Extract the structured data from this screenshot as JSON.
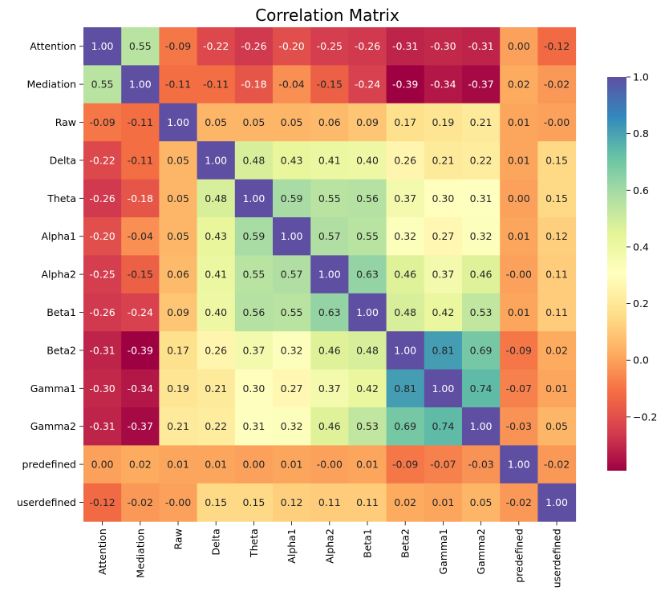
{
  "chart_data": {
    "type": "heatmap",
    "title": "Correlation Matrix",
    "labels": [
      "Attention",
      "Mediation",
      "Raw",
      "Delta",
      "Theta",
      "Alpha1",
      "Alpha2",
      "Beta1",
      "Beta2",
      "Gamma1",
      "Gamma2",
      "predefined",
      "userdefined"
    ],
    "values": [
      [
        1.0,
        0.55,
        -0.09,
        -0.22,
        -0.26,
        -0.2,
        -0.25,
        -0.26,
        -0.31,
        -0.3,
        -0.31,
        0.0,
        -0.12
      ],
      [
        0.55,
        1.0,
        -0.11,
        -0.11,
        -0.18,
        -0.04,
        -0.15,
        -0.24,
        -0.39,
        -0.34,
        -0.37,
        0.02,
        -0.02
      ],
      [
        -0.09,
        -0.11,
        1.0,
        0.05,
        0.05,
        0.05,
        0.06,
        0.09,
        0.17,
        0.19,
        0.21,
        0.01,
        -0.0
      ],
      [
        -0.22,
        -0.11,
        0.05,
        1.0,
        0.48,
        0.43,
        0.41,
        0.4,
        0.26,
        0.21,
        0.22,
        0.01,
        0.15
      ],
      [
        -0.26,
        -0.18,
        0.05,
        0.48,
        1.0,
        0.59,
        0.55,
        0.56,
        0.37,
        0.3,
        0.31,
        0.0,
        0.15
      ],
      [
        -0.2,
        -0.04,
        0.05,
        0.43,
        0.59,
        1.0,
        0.57,
        0.55,
        0.32,
        0.27,
        0.32,
        0.01,
        0.12
      ],
      [
        -0.25,
        -0.15,
        0.06,
        0.41,
        0.55,
        0.57,
        1.0,
        0.63,
        0.46,
        0.37,
        0.46,
        -0.0,
        0.11
      ],
      [
        -0.26,
        -0.24,
        0.09,
        0.4,
        0.56,
        0.55,
        0.63,
        1.0,
        0.48,
        0.42,
        0.53,
        0.01,
        0.11
      ],
      [
        -0.31,
        -0.39,
        0.17,
        0.26,
        0.37,
        0.32,
        0.46,
        0.48,
        1.0,
        0.81,
        0.69,
        -0.09,
        0.02
      ],
      [
        -0.3,
        -0.34,
        0.19,
        0.21,
        0.3,
        0.27,
        0.37,
        0.42,
        0.81,
        1.0,
        0.74,
        -0.07,
        0.01
      ],
      [
        -0.31,
        -0.37,
        0.21,
        0.22,
        0.31,
        0.32,
        0.46,
        0.53,
        0.69,
        0.74,
        1.0,
        -0.03,
        0.05
      ],
      [
        0.0,
        0.02,
        0.01,
        0.01,
        0.0,
        0.01,
        -0.0,
        0.01,
        -0.09,
        -0.07,
        -0.03,
        1.0,
        -0.02
      ],
      [
        -0.12,
        -0.02,
        -0.0,
        0.15,
        0.15,
        0.12,
        0.11,
        0.11,
        0.02,
        0.01,
        0.05,
        -0.02,
        1.0
      ]
    ],
    "value_range": [
      -0.39,
      1.0
    ],
    "colormap": "Spectral",
    "colorbar_ticks": [
      1.0,
      0.8,
      0.6,
      0.4,
      0.2,
      0.0,
      -0.2
    ],
    "colorbar_tick_labels": [
      "1.0",
      "0.8",
      "0.6",
      "0.4",
      "0.2",
      "0.0",
      "−0.2"
    ],
    "annotation_format": "2f",
    "legend": "colorbar-right"
  }
}
